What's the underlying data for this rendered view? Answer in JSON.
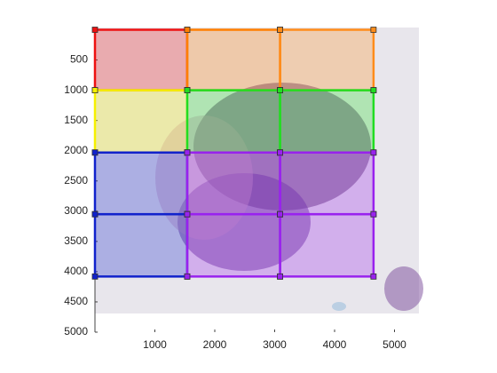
{
  "chart_data": {
    "type": "rect-grid",
    "xlim": [
      0,
      5400
    ],
    "ylim": [
      0,
      5000
    ],
    "xticks": [
      1000,
      2000,
      3000,
      4000,
      5000
    ],
    "yticks": [
      500,
      1000,
      1500,
      2000,
      2500,
      3000,
      3500,
      4000,
      4500,
      5000
    ],
    "y_reversed": true,
    "rects": [
      {
        "x": [
          0,
          1540
        ],
        "y": [
          0,
          1000
        ],
        "color": "#ee1111"
      },
      {
        "x": [
          1540,
          3090
        ],
        "y": [
          0,
          1000
        ],
        "color": "#ff7f00"
      },
      {
        "x": [
          3090,
          4650
        ],
        "y": [
          0,
          1000
        ],
        "color": "#ff8c1a"
      },
      {
        "x": [
          0,
          1540
        ],
        "y": [
          1000,
          2030
        ],
        "color": "#f5f000"
      },
      {
        "x": [
          1540,
          3090
        ],
        "y": [
          1000,
          2030
        ],
        "color": "#22dd22"
      },
      {
        "x": [
          3090,
          4650
        ],
        "y": [
          1000,
          2030
        ],
        "color": "#22dd22"
      },
      {
        "x": [
          0,
          1540
        ],
        "y": [
          2030,
          3050
        ],
        "color": "#1122cc"
      },
      {
        "x": [
          1540,
          3090
        ],
        "y": [
          2030,
          3050
        ],
        "color": "#9922ee"
      },
      {
        "x": [
          3090,
          4650
        ],
        "y": [
          2030,
          3050
        ],
        "color": "#9922ee"
      },
      {
        "x": [
          0,
          1540
        ],
        "y": [
          3050,
          4080
        ],
        "color": "#1122cc"
      },
      {
        "x": [
          1540,
          3090
        ],
        "y": [
          3050,
          4080
        ],
        "color": "#9922ee"
      },
      {
        "x": [
          3090,
          4650
        ],
        "y": [
          3050,
          4080
        ],
        "color": "#9922ee"
      }
    ]
  }
}
